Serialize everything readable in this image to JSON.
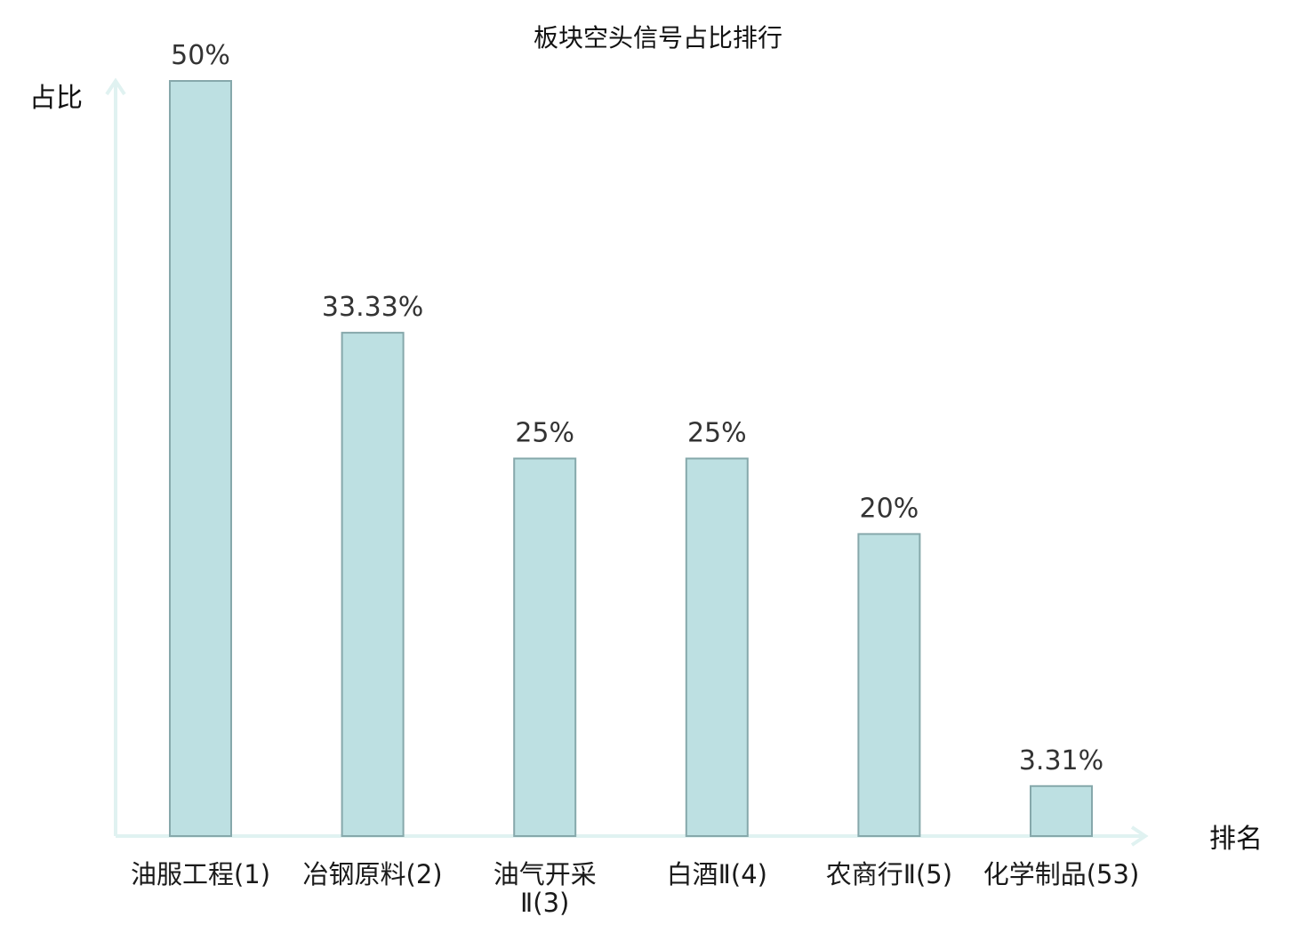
{
  "chart_data": {
    "type": "bar",
    "title": "板块空头信号占比排行",
    "ylabel": "占比",
    "xlabel": "排名",
    "categories": [
      [
        "油服工程(1)"
      ],
      [
        "冶钢原料(2)"
      ],
      [
        "油气开采",
        "Ⅱ(3)"
      ],
      [
        "白酒Ⅱ(4)"
      ],
      [
        "农商行Ⅱ(5)"
      ],
      [
        "化学制品(53)"
      ]
    ],
    "values": [
      50,
      33.33,
      25,
      25,
      20,
      3.31
    ],
    "value_labels": [
      "50%",
      "33.33%",
      "25%",
      "25%",
      "20%",
      "3.31%"
    ],
    "highlight_index": 5,
    "ylim": [
      0,
      50
    ],
    "grid": false,
    "colors": {
      "bar_fill": "#bde0e2",
      "bar_stroke": "#86a8ab",
      "axis": "#e0f2f1",
      "highlight_text": "#e02020",
      "text": "#1a1a1a",
      "value_text": "#333333"
    }
  }
}
